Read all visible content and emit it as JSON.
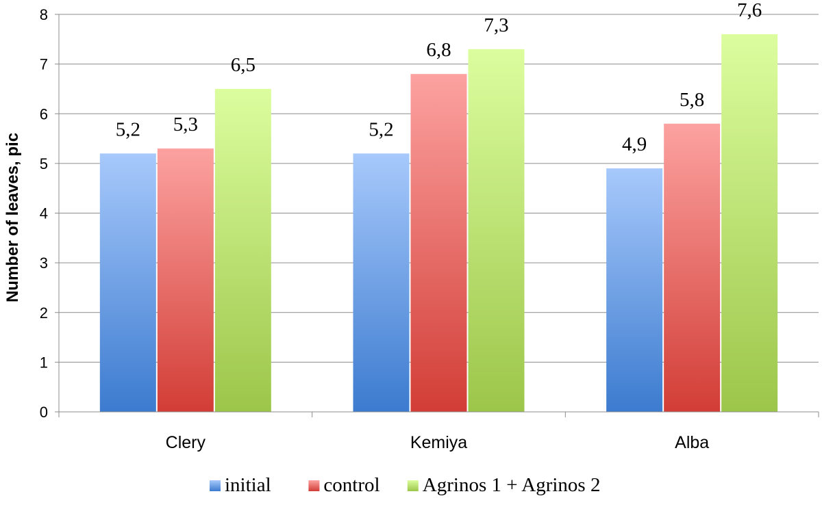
{
  "chart_data": {
    "type": "bar",
    "title": "",
    "xlabel": "",
    "ylabel": "Number of  leaves, pic",
    "categories": [
      "Clery",
      "Kemiya",
      "Alba"
    ],
    "series": [
      {
        "name": "initial",
        "values": [
          5.2,
          5.2,
          4.9
        ],
        "labels": [
          "5,2",
          "5,2",
          "4,9"
        ],
        "color": "#4a86d6"
      },
      {
        "name": "control",
        "values": [
          5.3,
          6.8,
          5.8
        ],
        "labels": [
          "5,3",
          "6,8",
          "5,8"
        ],
        "color": "#d9463f"
      },
      {
        "name": "Agrinos 1 + Agrinos 2",
        "values": [
          6.5,
          7.3,
          7.6
        ],
        "labels": [
          "6,5",
          "7,3",
          "7,6"
        ],
        "color": "#a6cc52"
      }
    ],
    "ylim": [
      0,
      8
    ],
    "yticks": [
      "0",
      "1",
      "2",
      "3",
      "4",
      "5",
      "6",
      "7",
      "8"
    ],
    "grid": true,
    "legend": "bottom"
  }
}
